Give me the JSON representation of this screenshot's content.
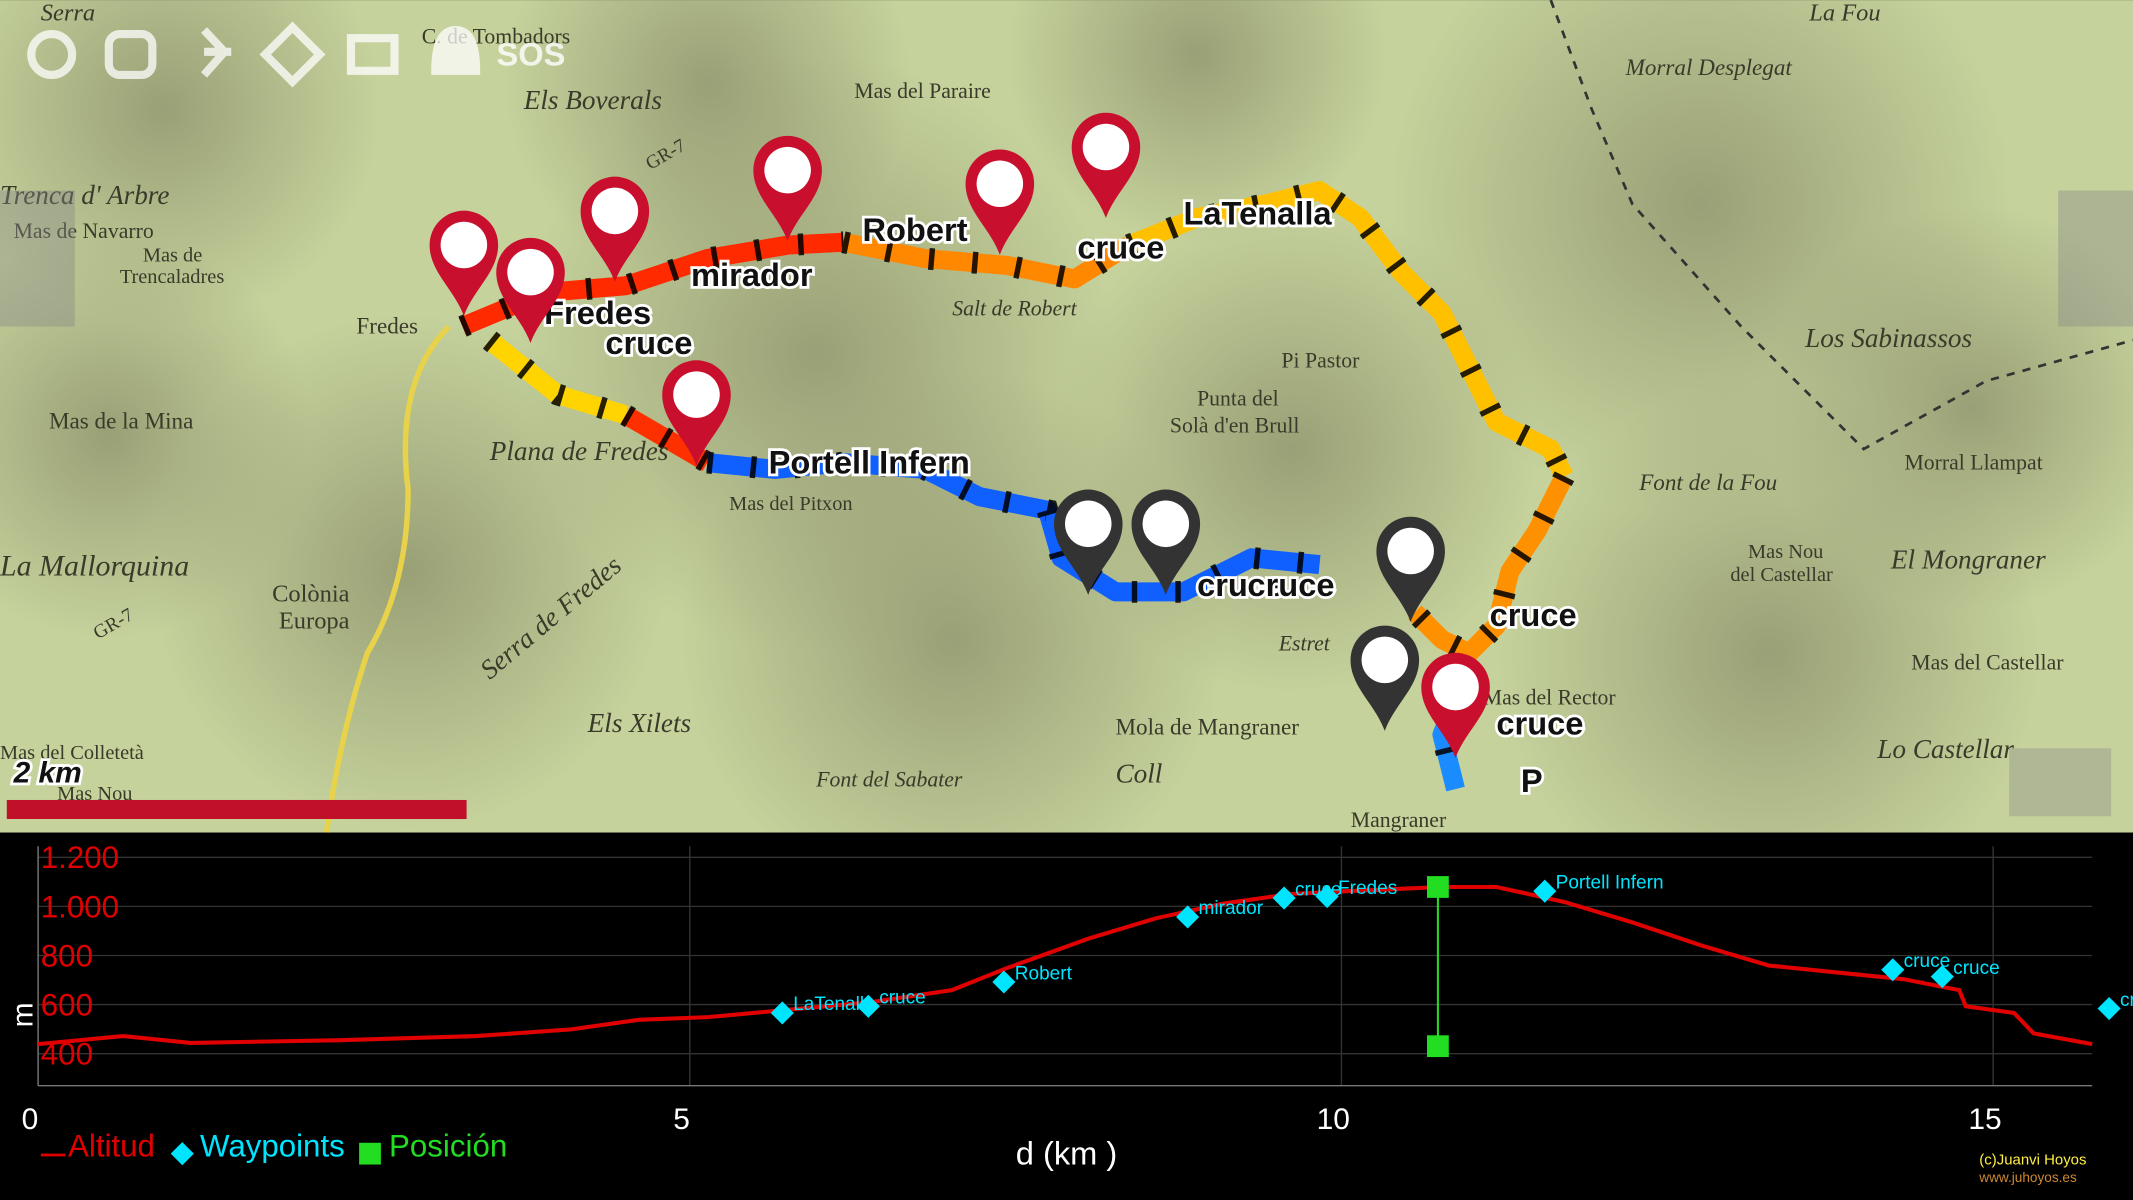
{
  "toolbar": {
    "sos": "SOS"
  },
  "map": {
    "scale": "2 km",
    "places": [
      "Serra",
      "C. de Tombadors",
      "Els Boverals",
      "Mas del Paraire",
      "GR-7",
      "Morral Desplegat",
      "La Fou",
      "Trenca d' Arbre",
      "Mas de Navarro",
      "Mas de",
      "Trencaladres",
      "Fredes",
      "Mas de la Mina",
      "Plana de Fredes",
      "La Mallorquina",
      "Colònia",
      "Europa",
      "Mas del Colletetà",
      "Mas Nou",
      "Els Xilets",
      "Serra de Fredes",
      "Font del Sabater",
      "Mola de Mangraner",
      "Coll",
      "Mangraner",
      "Salt de Robert",
      "Pi Pastor",
      "Punta del",
      "Solà d'en Brull",
      "Mas del Pitxon",
      "Los Sabinassos",
      "Font de la Fou",
      "Morral Llampat",
      "Mas Nou",
      "del Castellar",
      "El Mongraner",
      "Mas del Castellar",
      "Lo Castellar",
      "Estret",
      "Mas del Rector",
      "GR-7"
    ],
    "track_labels": [
      "Fredes",
      "cruce",
      "mirador",
      "Robert",
      "LaTenalla",
      "cruce",
      "Portell Infern",
      "cruce",
      "cruce",
      "cruce",
      "cruce",
      "P"
    ]
  },
  "chart_data": {
    "type": "line",
    "x_label": "d (km )",
    "y_label": "m",
    "xlim": [
      0,
      15.76
    ],
    "ylim": [
      270,
      1245
    ],
    "xticks": [
      0,
      5,
      10,
      15
    ],
    "yticks": [
      {
        "value": 1200,
        "label": "1.200"
      },
      {
        "value": 1000,
        "label": "1.000"
      },
      800,
      600,
      400
    ],
    "grid": true,
    "series": [
      {
        "name": "Altitud",
        "color": "#e00000",
        "x": [
          0,
          0.65,
          1.17,
          2.32,
          3.36,
          4.09,
          4.61,
          5.14,
          5.71,
          6.39,
          7.01,
          7.43,
          8.06,
          8.58,
          9.1,
          9.62,
          10.04,
          10.77,
          11.19,
          11.71,
          12.23,
          12.76,
          13.28,
          13.8,
          14.32,
          14.74,
          14.79,
          15.16,
          15.31,
          15.76
        ],
        "values": [
          439,
          472,
          444,
          455,
          472,
          499,
          538,
          549,
          577,
          610,
          659,
          748,
          869,
          952,
          1012,
          1051,
          1062,
          1079,
          1079,
          1018,
          935,
          841,
          759,
          731,
          703,
          659,
          593,
          566,
          483,
          439
        ]
      },
      {
        "name": "Waypoints",
        "color": "#00e5ff",
        "x": [
          5.71,
          6.37,
          7.41,
          8.82,
          9.56,
          9.89,
          11.56,
          14.23,
          14.61,
          15.89
        ],
        "values": [
          566,
          593,
          692,
          957,
          1034,
          1040,
          1062,
          742,
          714,
          584
        ],
        "labels": [
          "LaTenalla",
          "cruce",
          "Robert",
          "mirador",
          "cruce",
          "Fredes",
          "Portell Infern",
          "cruce",
          "cruce",
          "cruce"
        ]
      },
      {
        "name": "Posición",
        "color": "#22dd22",
        "x": [
          10.74
        ],
        "values": [
          1079
        ]
      }
    ]
  },
  "credit": {
    "author": "(c)Juanvi Hoyos",
    "site": "www.juhoyos.es"
  }
}
